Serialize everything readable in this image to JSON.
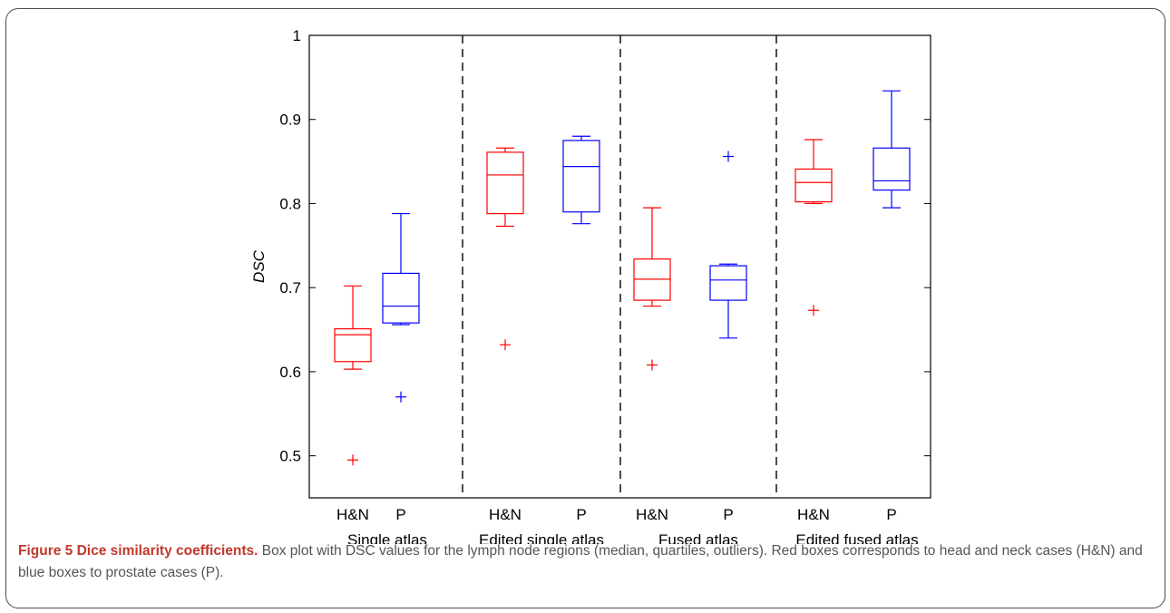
{
  "chart_data": {
    "type": "box",
    "ylabel": "DSC",
    "ylim": [
      0.45,
      1.0
    ],
    "yticks": [
      0.5,
      0.6,
      0.7,
      0.8,
      0.9,
      1.0
    ],
    "ytick_labels": [
      "0.5",
      "0.6",
      "0.7",
      "0.8",
      "0.9",
      "1"
    ],
    "groups": [
      "Single atlas",
      "Edited single atlas",
      "Fused atlas",
      "Edited fused atlas"
    ],
    "boxes": [
      {
        "group": 0,
        "label": "H&N",
        "color": "#ff0000",
        "whisker_low": 0.603,
        "q1": 0.612,
        "median": 0.644,
        "q3": 0.651,
        "whisker_high": 0.702,
        "outliers": [
          0.495
        ]
      },
      {
        "group": 0,
        "label": "P",
        "color": "#0000ff",
        "whisker_low": 0.656,
        "q1": 0.658,
        "median": 0.678,
        "q3": 0.717,
        "whisker_high": 0.788,
        "outliers": [
          0.57
        ]
      },
      {
        "group": 1,
        "label": "H&N",
        "color": "#ff0000",
        "whisker_low": 0.773,
        "q1": 0.788,
        "median": 0.834,
        "q3": 0.861,
        "whisker_high": 0.866,
        "outliers": [
          0.632
        ]
      },
      {
        "group": 1,
        "label": "P",
        "color": "#0000ff",
        "whisker_low": 0.776,
        "q1": 0.79,
        "median": 0.844,
        "q3": 0.875,
        "whisker_high": 0.88,
        "outliers": []
      },
      {
        "group": 2,
        "label": "H&N",
        "color": "#ff0000",
        "whisker_low": 0.678,
        "q1": 0.685,
        "median": 0.71,
        "q3": 0.734,
        "whisker_high": 0.795,
        "outliers": [
          0.608
        ]
      },
      {
        "group": 2,
        "label": "P",
        "color": "#0000ff",
        "whisker_low": 0.64,
        "q1": 0.685,
        "median": 0.709,
        "q3": 0.726,
        "whisker_high": 0.728,
        "outliers": [
          0.856
        ]
      },
      {
        "group": 3,
        "label": "H&N",
        "color": "#ff0000",
        "whisker_low": 0.8,
        "q1": 0.802,
        "median": 0.825,
        "q3": 0.841,
        "whisker_high": 0.876,
        "outliers": [
          0.673
        ]
      },
      {
        "group": 3,
        "label": "P",
        "color": "#0000ff",
        "whisker_low": 0.795,
        "q1": 0.816,
        "median": 0.827,
        "q3": 0.866,
        "whisker_high": 0.934,
        "outliers": []
      }
    ]
  },
  "caption": {
    "title": "Figure 5 Dice similarity coefficients.",
    "text": " Box plot with DSC values for the lymph node regions (median, quartiles, outliers). Red boxes corresponds to head and neck cases (H&N) and blue boxes to prostate cases (P)."
  }
}
